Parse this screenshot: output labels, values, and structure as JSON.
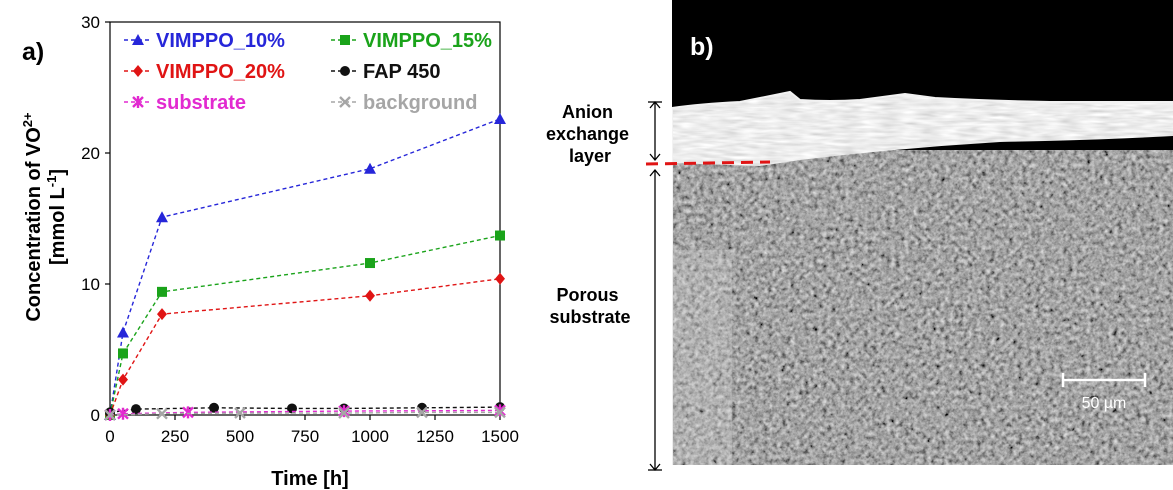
{
  "panel_a": {
    "label": "a)"
  },
  "panel_b": {
    "label": "b)",
    "annotation_top": [
      "Anion",
      "exchange",
      "layer"
    ],
    "annotation_bottom": [
      "Porous",
      "substrate"
    ],
    "scale_bar": "50 µm"
  },
  "colors": {
    "VIMPPO_10%": "#2626d9",
    "VIMPPO_15%": "#1aa31a",
    "VIMPPO_20%": "#e01414",
    "FAP 450": "#111111",
    "substrate": "#e22ad0",
    "background": "#a6a6a6"
  },
  "chart_data": {
    "type": "line",
    "xlabel": "Time [h]",
    "ylabel_line1": "Concentration of VO",
    "ylabel_sup": "2+",
    "ylabel_line2_pre": "[mmol L",
    "ylabel_line2_sup": "-1",
    "ylabel_line2_post": "]",
    "xlim": [
      0,
      1500
    ],
    "ylim": [
      0,
      30
    ],
    "xticks": [
      0,
      250,
      500,
      750,
      1000,
      1250,
      1500
    ],
    "yticks": [
      0,
      10,
      20,
      30
    ],
    "legend_position": "top",
    "series": [
      {
        "name": "VIMPPO_10%",
        "marker": "triangle",
        "x": [
          0,
          50,
          200,
          1000,
          1500
        ],
        "y": [
          0,
          6.3,
          15.1,
          18.8,
          22.6
        ]
      },
      {
        "name": "VIMPPO_15%",
        "marker": "square",
        "x": [
          0,
          50,
          200,
          1000,
          1500
        ],
        "y": [
          0,
          4.7,
          9.4,
          11.6,
          13.7
        ]
      },
      {
        "name": "VIMPPO_20%",
        "marker": "diamond",
        "x": [
          0,
          50,
          200,
          1000,
          1500
        ],
        "y": [
          0,
          2.7,
          7.7,
          9.1,
          10.4
        ]
      },
      {
        "name": "FAP 450",
        "marker": "circle",
        "x": [
          0,
          100,
          400,
          700,
          900,
          1200,
          1500
        ],
        "y": [
          0.2,
          0.45,
          0.55,
          0.5,
          0.5,
          0.55,
          0.6
        ]
      },
      {
        "name": "substrate",
        "marker": "star",
        "x": [
          0,
          50,
          300,
          900,
          1500
        ],
        "y": [
          0,
          0.1,
          0.2,
          0.3,
          0.35
        ]
      },
      {
        "name": "background",
        "marker": "x",
        "x": [
          0,
          200,
          500,
          900,
          1200,
          1500
        ],
        "y": [
          0,
          0.1,
          0.15,
          0.15,
          0.2,
          0.2
        ]
      }
    ]
  }
}
